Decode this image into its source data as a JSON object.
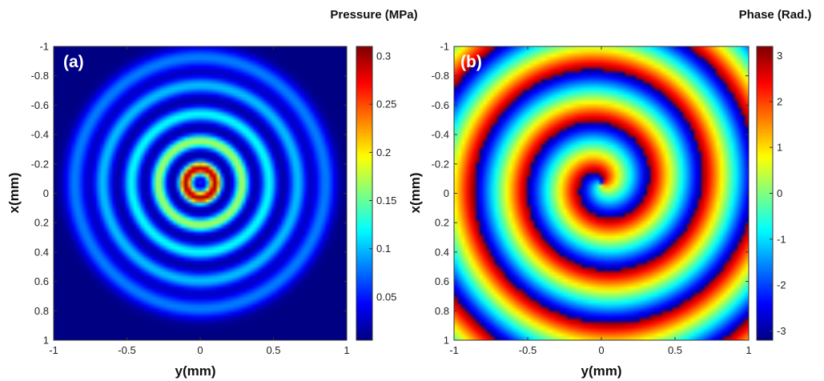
{
  "chart_data": [
    {
      "type": "heatmap",
      "panel_label": "(a)",
      "colorbar_title": "Pressure (MPa)",
      "xlabel": "y(mm)",
      "ylabel": "x(mm)",
      "xlim": [
        -1,
        1
      ],
      "ylim": [
        -1,
        1
      ],
      "y_axis_reversed": true,
      "xticks": [
        "-1",
        "-0.5",
        "0",
        "0.5",
        "1"
      ],
      "yticks": [
        "-1",
        "-0.8",
        "-0.6",
        "-0.4",
        "-0.2",
        "0",
        "0.2",
        "0.4",
        "0.6",
        "0.8",
        "1"
      ],
      "colorbar_range": [
        0.005,
        0.31
      ],
      "colorbar_ticks": [
        "0.05",
        "0.1",
        "0.15",
        "0.2",
        "0.25",
        "0.3"
      ],
      "colormap": "jet",
      "center": [
        0.0,
        -0.07
      ],
      "grid_resolution": 81,
      "pattern": "concentric rings: minimum at center (~0.05), bright ring peak ~0.3 at r≈0.1, dark ring at r≈0.2, secondary ring ~0.17 at r≈0.28, decaying outer rings ~0.12 at r≈0.47, ~0.1 at r≈0.66, ~0.08 at r≈0.85"
    },
    {
      "type": "heatmap",
      "panel_label": "(b)",
      "colorbar_title": "Phase (Rad.)",
      "xlabel": "y(mm)",
      "ylabel": "x(mm)",
      "xlim": [
        -1,
        1
      ],
      "ylim": [
        -1,
        1
      ],
      "y_axis_reversed": true,
      "xticks": [
        "-1",
        "-0.5",
        "0",
        "0.5",
        "1"
      ],
      "yticks": [
        "-1",
        "-0.8",
        "-0.6",
        "-0.4",
        "-0.2",
        "0",
        "0.2",
        "0.4",
        "0.6",
        "0.8",
        "1"
      ],
      "colorbar_range": [
        -3.2,
        3.2
      ],
      "colorbar_ticks": [
        "-3",
        "-2",
        "-1",
        "0",
        "1",
        "2",
        "3"
      ],
      "colormap": "jet",
      "center": [
        0.0,
        -0.07
      ],
      "grid_resolution": 81,
      "pattern": "vortex phase (azimuthal winding) plus radial phase steps, wrapped to [-pi, pi]"
    }
  ]
}
